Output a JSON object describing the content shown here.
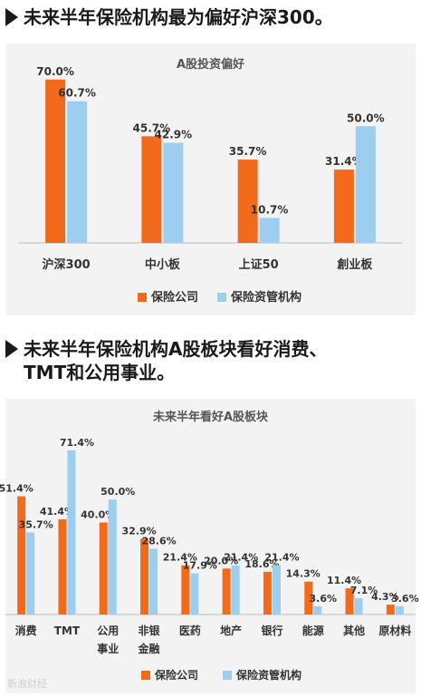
{
  "section1": {
    "heading": "未来半年保险机构最为偏好沪深300。"
  },
  "section2": {
    "heading_line1": "未来半年保险机构A股板块看好消费、",
    "heading_line2": "TMT和公用事业。"
  },
  "watermark": "新浪财经",
  "colors": {
    "orange": "#f26a1b",
    "blue": "#9dcdef",
    "panel": "#f3f3f3"
  },
  "chart_data": [
    {
      "type": "bar",
      "title": "A股投资偏好",
      "categories": [
        "沪深300",
        "中小板",
        "上证50",
        "創业板"
      ],
      "series": [
        {
          "name": "保险公司",
          "values": [
            70.0,
            45.7,
            35.7,
            31.4
          ],
          "labels": [
            "70.0%",
            "45.7%",
            "35.7%",
            "31.4%"
          ]
        },
        {
          "name": "保险资管机构",
          "values": [
            60.7,
            42.9,
            10.7,
            50.0
          ],
          "labels": [
            "60.7%",
            "42.9%",
            "10.7%",
            "50.0%"
          ]
        }
      ],
      "ylim": [
        0,
        80
      ],
      "legend": "bottom"
    },
    {
      "type": "bar",
      "title": "未来半年看好A股板块",
      "categories": [
        [
          "消费"
        ],
        [
          "TMT"
        ],
        [
          "公用",
          "事业"
        ],
        [
          "非银",
          "金融"
        ],
        [
          "医药"
        ],
        [
          "地产"
        ],
        [
          "银行"
        ],
        [
          "能源"
        ],
        [
          "其他"
        ],
        [
          "原材料"
        ]
      ],
      "series": [
        {
          "name": "保险公司",
          "values": [
            51.4,
            41.4,
            40.0,
            32.9,
            21.4,
            20.0,
            18.6,
            14.3,
            11.4,
            4.3
          ],
          "labels": [
            "51.4%",
            "41.4%",
            "40.0%",
            "32.9%",
            "21.4%",
            "20.0%",
            "18.6%",
            "14.3%",
            "11.4%",
            "4.3%"
          ]
        },
        {
          "name": "保险资管机构",
          "values": [
            35.7,
            71.4,
            50.0,
            28.6,
            17.9,
            21.4,
            21.4,
            3.6,
            7.1,
            3.6
          ],
          "labels": [
            "35.7%",
            "71.4%",
            "50.0%",
            "28.6%",
            "17.9%",
            "21.4%",
            "21.4%",
            "3.6%",
            "7.1%",
            "3.6%"
          ]
        }
      ],
      "ylim": [
        0,
        80
      ],
      "legend": "bottom"
    }
  ]
}
